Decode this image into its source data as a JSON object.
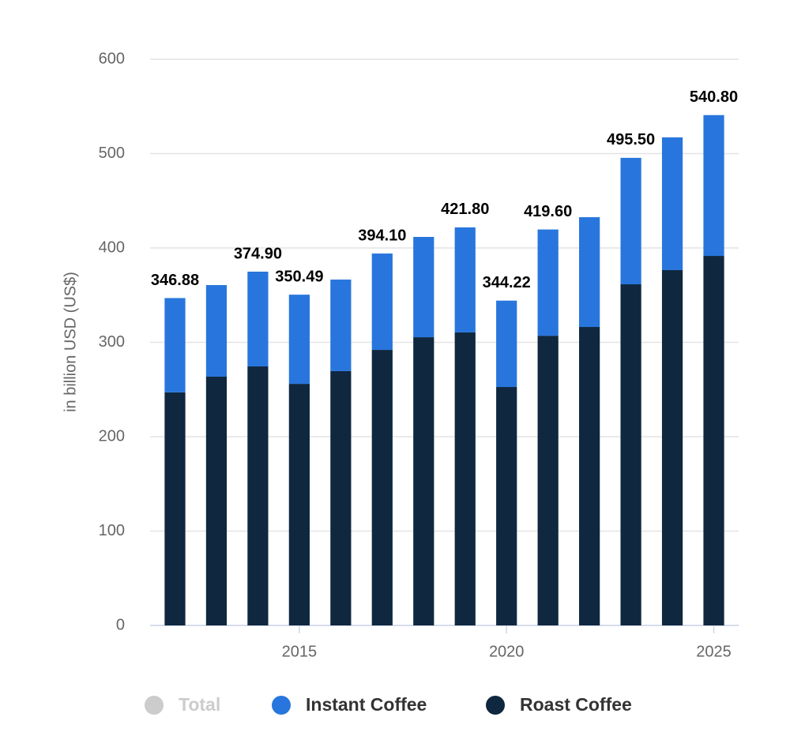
{
  "chart_data": {
    "type": "stacked-bar",
    "y_label": "in billion USD (US$)",
    "x": [
      2012,
      2013,
      2014,
      2015,
      2016,
      2017,
      2018,
      2019,
      2020,
      2021,
      2022,
      2023,
      2024,
      2025
    ],
    "xlim": [
      2011.4,
      2025.6
    ],
    "xticks": [
      2015,
      2020,
      2025
    ],
    "ylim": [
      0,
      600
    ],
    "yticks": [
      0,
      100,
      200,
      300,
      400,
      500,
      600
    ],
    "grid": true,
    "series": [
      {
        "name": "Total",
        "color": "#cccccc",
        "visible": false,
        "values": [
          346.88,
          null,
          374.9,
          350.49,
          null,
          394.1,
          null,
          421.8,
          344.22,
          419.6,
          null,
          495.5,
          null,
          540.8
        ],
        "value_labels": [
          "346.88",
          null,
          "374.90",
          "350.49",
          null,
          "394.10",
          null,
          "421.80",
          "344.22",
          "419.60",
          null,
          "495.50",
          null,
          "540.80"
        ]
      },
      {
        "name": "Instant Coffee",
        "color": "#2876dd",
        "visible": true,
        "values": [
          99.9,
          97.1,
          100.4,
          94.5,
          97,
          102.1,
          106.3,
          111.3,
          91.5,
          112.6,
          116.3,
          134,
          140.6,
          149.2
        ]
      },
      {
        "name": "Roast Coffee",
        "color": "#0f2840",
        "visible": true,
        "values": [
          247,
          263.6,
          274.5,
          256,
          269.5,
          292,
          305.4,
          310.5,
          252.7,
          307,
          316.3,
          361.5,
          376.6,
          391.6
        ]
      }
    ]
  }
}
